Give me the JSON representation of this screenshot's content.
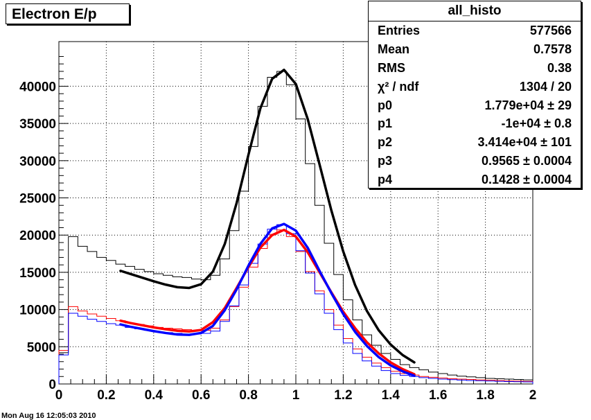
{
  "chart_data": {
    "type": "histogram",
    "title": "Electron E/p",
    "xlabel": "",
    "ylabel": "",
    "xlim": [
      0,
      2
    ],
    "ylim": [
      0,
      46000
    ],
    "x_ticks": [
      "0",
      "0.2",
      "0.4",
      "0.6",
      "0.8",
      "1",
      "1.2",
      "1.4",
      "1.6",
      "1.8",
      "2"
    ],
    "y_ticks": [
      "0",
      "5000",
      "10000",
      "15000",
      "20000",
      "25000",
      "30000",
      "35000",
      "40000"
    ],
    "grid": true,
    "bin_edges": [
      0,
      0.04,
      0.08,
      0.12,
      0.16,
      0.2,
      0.24,
      0.28,
      0.32,
      0.36,
      0.4,
      0.44,
      0.48,
      0.52,
      0.56,
      0.6,
      0.64,
      0.68,
      0.72,
      0.76,
      0.8,
      0.84,
      0.88,
      0.92,
      0.96,
      1.0,
      1.04,
      1.08,
      1.12,
      1.16,
      1.2,
      1.24,
      1.28,
      1.32,
      1.36,
      1.4,
      1.44,
      1.48,
      1.52,
      1.56,
      1.6,
      1.64,
      1.68,
      1.72,
      1.76,
      1.8,
      1.84,
      1.88,
      1.92,
      1.96,
      2.0
    ],
    "series": [
      {
        "color": "#000000",
        "style": "histogram",
        "values": [
          4200,
          19800,
          18500,
          17800,
          17000,
          16600,
          16100,
          15800,
          15400,
          15100,
          14800,
          14600,
          14400,
          14300,
          14100,
          14000,
          14600,
          16800,
          20600,
          25900,
          31900,
          37300,
          41200,
          42000,
          40200,
          35600,
          29600,
          24000,
          18900,
          14700,
          11300,
          8600,
          6600,
          5200,
          4100,
          3300,
          2600,
          2200,
          1900,
          1600,
          1400,
          1200,
          1050,
          950,
          850,
          750,
          700,
          650,
          600,
          550
        ]
      },
      {
        "color": "#ff0000",
        "style": "histogram",
        "values": [
          4500,
          10400,
          9800,
          9400,
          9100,
          8800,
          8500,
          8200,
          8000,
          7800,
          7600,
          7500,
          7400,
          7300,
          7200,
          7200,
          7500,
          8600,
          10400,
          13000,
          15700,
          18200,
          20100,
          20700,
          19800,
          17800,
          15100,
          12500,
          10000,
          7900,
          6100,
          4700,
          3600,
          2800,
          2200,
          1700,
          1400,
          1200,
          1000,
          900,
          800,
          700,
          650,
          600,
          550,
          500,
          450,
          400,
          380,
          350
        ]
      },
      {
        "color": "#0000ff",
        "style": "histogram",
        "values": [
          3900,
          9500,
          9100,
          8700,
          8400,
          8100,
          7900,
          7600,
          7400,
          7200,
          7000,
          6900,
          6800,
          6700,
          6700,
          6800,
          7100,
          8400,
          10500,
          13300,
          16200,
          18800,
          20800,
          21400,
          20200,
          17900,
          14900,
          12100,
          9500,
          7300,
          5500,
          4100,
          3100,
          2400,
          1800,
          1400,
          1150,
          1000,
          850,
          750,
          650,
          580,
          520,
          470,
          430,
          390,
          360,
          330,
          300,
          280
        ]
      },
      {
        "color": "#000000",
        "style": "fit",
        "x": [
          0.26,
          0.3,
          0.35,
          0.4,
          0.45,
          0.5,
          0.55,
          0.6,
          0.65,
          0.7,
          0.75,
          0.8,
          0.85,
          0.9,
          0.95,
          1.0,
          1.05,
          1.1,
          1.15,
          1.2,
          1.25,
          1.3,
          1.35,
          1.4,
          1.45,
          1.5
        ],
        "y": [
          15200,
          14800,
          14300,
          13800,
          13350,
          13000,
          12900,
          13400,
          15100,
          18800,
          24300,
          30800,
          37000,
          41000,
          42200,
          40300,
          35600,
          29500,
          23300,
          17800,
          13300,
          9800,
          7200,
          5300,
          3900,
          2900
        ]
      },
      {
        "color": "#ff0000",
        "style": "fit",
        "x": [
          0.26,
          0.3,
          0.35,
          0.4,
          0.45,
          0.5,
          0.55,
          0.6,
          0.65,
          0.7,
          0.75,
          0.8,
          0.85,
          0.9,
          0.95,
          1.0,
          1.05,
          1.1,
          1.15,
          1.2,
          1.25,
          1.3,
          1.35,
          1.4,
          1.45,
          1.5
        ],
        "y": [
          8500,
          8200,
          7900,
          7600,
          7350,
          7150,
          7050,
          7250,
          8300,
          10200,
          12900,
          15700,
          18300,
          20000,
          20700,
          19800,
          17700,
          15000,
          12300,
          9700,
          7500,
          5600,
          4100,
          2900,
          2000,
          1300
        ]
      },
      {
        "color": "#0000ff",
        "style": "fit",
        "x": [
          0.26,
          0.3,
          0.35,
          0.4,
          0.45,
          0.5,
          0.55,
          0.6,
          0.65,
          0.7,
          0.75,
          0.8,
          0.85,
          0.9,
          0.95,
          1.0,
          1.05,
          1.1,
          1.15,
          1.2,
          1.25,
          1.3,
          1.35,
          1.4,
          1.45,
          1.5
        ],
        "y": [
          8000,
          7700,
          7400,
          7100,
          6850,
          6650,
          6600,
          6850,
          7800,
          9900,
          12700,
          15900,
          18800,
          20900,
          21500,
          20600,
          18300,
          15200,
          12200,
          9400,
          7000,
          5100,
          3600,
          2500,
          1700,
          1100
        ]
      }
    ]
  },
  "stats_box": {
    "title": "all_histo",
    "rows": [
      {
        "key": "Entries",
        "value": "577566"
      },
      {
        "key": "Mean",
        "value": "0.7578"
      },
      {
        "key": "RMS",
        "value": "0.38"
      },
      {
        "key": "χ² / ndf",
        "value": "1304 / 20"
      },
      {
        "key": "p0",
        "value": "1.779e+04 ± 29"
      },
      {
        "key": "p1",
        "value": "-1e+04 ± 0.8"
      },
      {
        "key": "p2",
        "value": "3.414e+04 ± 101"
      },
      {
        "key": "p3",
        "value": "0.9565 ± 0.0004"
      },
      {
        "key": "p4",
        "value": "0.1428 ± 0.0004"
      }
    ]
  },
  "footer": "Mon Aug 16 12:05:03 2010"
}
